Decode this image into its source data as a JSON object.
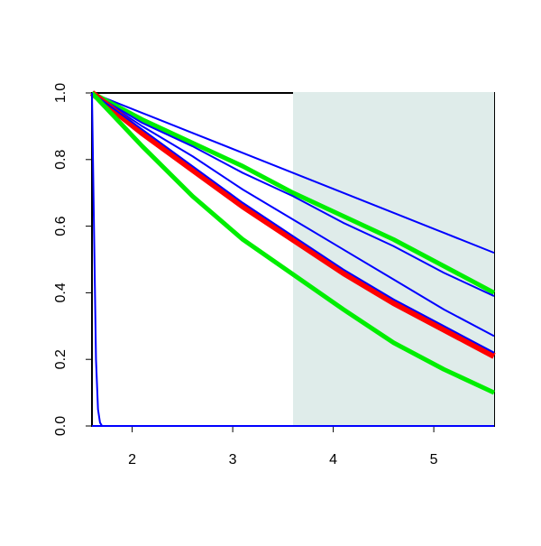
{
  "chart_data": {
    "type": "line",
    "xlim": [
      1.6,
      5.6
    ],
    "ylim": [
      0,
      1
    ],
    "xticks": [
      2,
      3,
      4,
      5
    ],
    "yticks": [
      {
        "value": 0,
        "label": "0.0"
      },
      0.2,
      0.4,
      0.6,
      0.8,
      {
        "value": 1,
        "label": "1.0"
      }
    ],
    "highlight": {
      "xlim": [
        3.6,
        5.6
      ],
      "color": "#dfecea"
    },
    "series": [
      {
        "color": "#0000ff",
        "width": 2,
        "x": [
          1.6,
          2.1,
          2.6,
          3.1,
          3.6,
          4.1,
          4.6,
          5.1,
          5.6
        ],
        "values": [
          1,
          0.94,
          0.88,
          0.82,
          0.76,
          0.7,
          0.64,
          0.58,
          0.52
        ]
      },
      {
        "color": "#00ee00",
        "width": 5,
        "x": [
          1.6,
          2.1,
          2.6,
          3.1,
          3.6,
          4.1,
          4.6,
          5.1,
          5.6
        ],
        "values": [
          1,
          0.92,
          0.85,
          0.78,
          0.7,
          0.63,
          0.56,
          0.48,
          0.4
        ]
      },
      {
        "color": "#0000ff",
        "width": 2,
        "x": [
          1.6,
          2.1,
          2.6,
          3.1,
          3.6,
          4.1,
          4.6,
          5.1,
          5.6
        ],
        "values": [
          1,
          0.91,
          0.84,
          0.76,
          0.69,
          0.61,
          0.54,
          0.46,
          0.39
        ]
      },
      {
        "color": "#0000ff",
        "width": 2,
        "x": [
          1.6,
          2.1,
          2.6,
          3.1,
          3.6,
          4.1,
          4.6,
          5.1,
          5.6
        ],
        "values": [
          1,
          0.9,
          0.81,
          0.71,
          0.62,
          0.53,
          0.44,
          0.35,
          0.27
        ]
      },
      {
        "color": "#ff0000",
        "width": 7,
        "x": [
          1.6,
          2.1,
          2.6,
          3.1,
          3.6,
          4.1,
          4.6,
          5.1,
          5.6
        ],
        "values": [
          1,
          0.88,
          0.77,
          0.66,
          0.56,
          0.46,
          0.37,
          0.29,
          0.21
        ]
      },
      {
        "color": "#0000ff",
        "width": 2,
        "x": [
          1.6,
          2.1,
          2.6,
          3.1,
          3.6,
          4.1,
          4.6,
          5.1,
          5.6
        ],
        "values": [
          1,
          0.89,
          0.78,
          0.67,
          0.57,
          0.47,
          0.38,
          0.3,
          0.22
        ]
      },
      {
        "color": "#00ee00",
        "width": 5,
        "x": [
          1.6,
          2.1,
          2.6,
          3.1,
          3.6,
          4.1,
          4.6,
          5.1,
          5.6
        ],
        "values": [
          1,
          0.84,
          0.69,
          0.56,
          0.455,
          0.35,
          0.25,
          0.17,
          0.1
        ]
      },
      {
        "color": "#0000ff",
        "width": 2,
        "x": [
          1.6,
          1.62,
          1.64,
          1.66,
          1.68,
          1.7
        ],
        "values": [
          1,
          0.6,
          0.2,
          0.05,
          0.01,
          0
        ]
      },
      {
        "color": "#0000ff",
        "width": 2,
        "x": [
          1.6,
          5.6
        ],
        "values": [
          0,
          0
        ]
      }
    ]
  }
}
